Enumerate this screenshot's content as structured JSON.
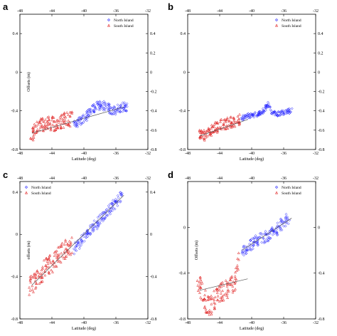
{
  "chart_data": [
    {
      "type": "scatter",
      "panel_label": "a",
      "xlabel": "Latitude (deg)",
      "ylabel": "Offsets (m)",
      "xlim": [
        -48,
        -32
      ],
      "ylim": [
        -0.8,
        0.6
      ],
      "xticks": [
        "-48",
        "-44",
        "-40",
        "-36",
        "-32"
      ],
      "yticks": [
        "0.4",
        "0",
        "-0.4",
        "-0.8"
      ],
      "right_yticks": [
        "0.4",
        "0.2",
        "0",
        "-0.2",
        "-0.4",
        "-0.6",
        "-0.8"
      ],
      "legend": {
        "position": "top-right",
        "entries": [
          "North Island",
          "South Island"
        ]
      },
      "series": [
        {
          "name": "North Island",
          "color": "#1a1aff",
          "marker": "diamond",
          "x": [
            -41.3,
            -40.8,
            -40.2,
            -39.6,
            -39.0,
            -38.5,
            -38.0,
            -37.4,
            -36.8,
            -36.2,
            -35.6,
            -35.0,
            -34.6
          ],
          "y": [
            -0.56,
            -0.52,
            -0.48,
            -0.45,
            -0.4,
            -0.36,
            -0.34,
            -0.35,
            -0.38,
            -0.4,
            -0.38,
            -0.36,
            -0.35
          ],
          "spread": 0.05
        },
        {
          "name": "South Island",
          "color": "#e02020",
          "marker": "triangle",
          "x": [
            -46.6,
            -46.2,
            -45.6,
            -45.0,
            -44.4,
            -43.8,
            -43.2,
            -42.6,
            -42.0,
            -41.5
          ],
          "y": [
            -0.66,
            -0.6,
            -0.57,
            -0.55,
            -0.54,
            -0.53,
            -0.51,
            -0.5,
            -0.49,
            -0.48
          ],
          "spread": 0.08
        }
      ],
      "trend": [
        {
          "x": [
            -46.5,
            -41.0
          ],
          "y": [
            -0.63,
            -0.5
          ]
        },
        {
          "x": [
            -41.0,
            -35.0
          ],
          "y": [
            -0.5,
            -0.36
          ]
        }
      ]
    },
    {
      "type": "scatter",
      "panel_label": "b",
      "xlabel": "Latitude (deg)",
      "ylabel": "",
      "xlim": [
        -48,
        -32
      ],
      "ylim": [
        -0.8,
        0.6
      ],
      "xticks": [
        "-48",
        "-44",
        "-40",
        "-36",
        "-32"
      ],
      "yticks": [
        "0.4",
        "0",
        "-0.4",
        "-0.8"
      ],
      "right_yticks": [
        "0.4",
        "0.2",
        "0",
        "-0.2",
        "-0.4",
        "-0.6",
        "-0.8"
      ],
      "legend": {
        "position": "top-right",
        "entries": [
          "North Island",
          "South Island"
        ]
      },
      "series": [
        {
          "name": "North Island",
          "color": "#1a1aff",
          "marker": "diamond",
          "x": [
            -41.3,
            -40.8,
            -40.2,
            -39.6,
            -39.0,
            -38.5,
            -38.0,
            -37.4,
            -36.8,
            -36.2,
            -35.6,
            -35.0
          ],
          "y": [
            -0.48,
            -0.46,
            -0.45,
            -0.44,
            -0.42,
            -0.4,
            -0.33,
            -0.42,
            -0.43,
            -0.42,
            -0.41,
            -0.4
          ],
          "spread": 0.025
        },
        {
          "name": "South Island",
          "color": "#e02020",
          "marker": "triangle",
          "x": [
            -46.6,
            -46.2,
            -45.6,
            -45.0,
            -44.4,
            -43.8,
            -43.2,
            -42.6,
            -42.0,
            -41.5
          ],
          "y": [
            -0.62,
            -0.66,
            -0.64,
            -0.6,
            -0.57,
            -0.55,
            -0.53,
            -0.52,
            -0.5,
            -0.49
          ],
          "spread": 0.06
        }
      ],
      "trend": [
        {
          "x": [
            -46.5,
            -40.5
          ],
          "y": [
            -0.66,
            -0.49
          ]
        }
      ]
    },
    {
      "type": "scatter",
      "panel_label": "c",
      "xlabel": "Latitude (deg)",
      "ylabel": "offsets (m)",
      "xlim": [
        -48,
        -32
      ],
      "ylim": [
        -0.8,
        0.5
      ],
      "xticks": [
        "-48",
        "-44",
        "-40",
        "-36",
        "-32"
      ],
      "yticks": [
        "0.4",
        "0",
        "-0.4",
        "-0.8"
      ],
      "right_yticks": [
        "0.4",
        "0",
        "-0.4",
        "-0.8"
      ],
      "legend": {
        "position": "top-left",
        "entries": [
          "North Island",
          "South Island"
        ]
      },
      "series": [
        {
          "name": "North Island",
          "color": "#1a1aff",
          "marker": "diamond",
          "x": [
            -41.2,
            -40.6,
            -40.0,
            -39.4,
            -38.8,
            -38.2,
            -37.6,
            -37.0,
            -36.4,
            -35.8,
            -35.2
          ],
          "y": [
            -0.14,
            -0.09,
            -0.03,
            0.02,
            0.07,
            0.12,
            0.17,
            0.22,
            0.27,
            0.32,
            0.37
          ],
          "spread": 0.05
        },
        {
          "name": "South Island",
          "color": "#e02020",
          "marker": "triangle",
          "x": [
            -46.8,
            -46.3,
            -45.7,
            -45.1,
            -44.5,
            -43.9,
            -43.3,
            -42.7,
            -42.1,
            -41.5
          ],
          "y": [
            -0.5,
            -0.46,
            -0.4,
            -0.35,
            -0.3,
            -0.26,
            -0.22,
            -0.17,
            -0.13,
            -0.1
          ],
          "spread": 0.09
        }
      ],
      "trend": [
        {
          "x": [
            -46.5,
            -35.0
          ],
          "y": [
            -0.48,
            0.37
          ]
        }
      ]
    },
    {
      "type": "scatter",
      "panel_label": "d",
      "xlabel": "Latitude (deg)",
      "ylabel": "Offsets (m)",
      "xlim": [
        -48,
        -32
      ],
      "ylim": [
        -0.8,
        0.4
      ],
      "xticks": [
        "-48",
        "-44",
        "-40",
        "-36",
        "-32"
      ],
      "yticks": [
        "0",
        "-0.4",
        "-0.8"
      ],
      "right_yticks": [
        "0",
        "-0.4",
        "-0.8"
      ],
      "legend": {
        "position": "top-right",
        "entries": [
          "North Island",
          "South Island"
        ]
      },
      "series": [
        {
          "name": "North Island",
          "color": "#1a1aff",
          "marker": "diamond",
          "x": [
            -41.3,
            -40.7,
            -40.1,
            -39.5,
            -38.9,
            -38.3,
            -37.7,
            -37.1,
            -36.5,
            -35.9,
            -35.3
          ],
          "y": [
            -0.22,
            -0.18,
            -0.15,
            -0.12,
            -0.1,
            -0.08,
            -0.06,
            -0.03,
            0.01,
            0.05,
            0.08
          ],
          "spread": 0.05
        },
        {
          "name": "South Island",
          "color": "#e02020",
          "marker": "triangle",
          "x": [
            -46.8,
            -46.3,
            -45.7,
            -45.1,
            -44.5,
            -43.9,
            -43.3,
            -42.7,
            -42.1,
            -41.6
          ],
          "y": [
            -0.45,
            -0.55,
            -0.66,
            -0.7,
            -0.62,
            -0.58,
            -0.55,
            -0.52,
            -0.48,
            -0.3
          ],
          "spread": 0.09
        }
      ],
      "trend": [
        {
          "x": [
            -46.5,
            -40.5
          ],
          "y": [
            -0.55,
            -0.45
          ]
        },
        {
          "x": [
            -41.2,
            -35.0
          ],
          "y": [
            -0.2,
            0.08
          ]
        }
      ]
    }
  ]
}
